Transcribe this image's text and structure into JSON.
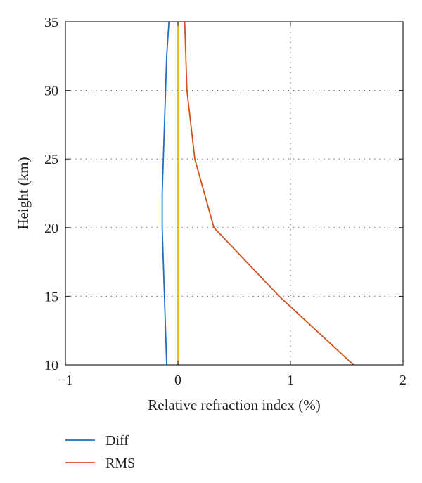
{
  "chart_data": {
    "type": "line",
    "title": "",
    "xlabel": "Relative refraction index (%)",
    "ylabel": "Height (km)",
    "xlim": [
      -1,
      2
    ],
    "ylim": [
      10,
      35
    ],
    "xticks": [
      -1,
      0,
      1,
      2
    ],
    "yticks": [
      10,
      15,
      20,
      25,
      30,
      35
    ],
    "xtick_labels": [
      "−1",
      "0",
      "1",
      "2"
    ],
    "ytick_labels": [
      "10",
      "15",
      "20",
      "25",
      "30",
      "35"
    ],
    "grid": "dotted, major ticks",
    "legend_position": "below plot",
    "zero_line": {
      "x": 0,
      "color": "#E8A400"
    },
    "series": [
      {
        "name": "Diff",
        "color": "#1F6FBF",
        "x": [
          -0.1,
          -0.11,
          -0.12,
          -0.13,
          -0.14,
          -0.14,
          -0.13,
          -0.12,
          -0.11,
          -0.1,
          -0.08
        ],
        "y": [
          10,
          12.5,
          15,
          17.5,
          20,
          22.5,
          25,
          27.5,
          30,
          32.5,
          35
        ]
      },
      {
        "name": "RMS",
        "color": "#D2511B",
        "x": [
          1.56,
          0.9,
          0.32,
          0.15,
          0.08,
          0.06
        ],
        "y": [
          10,
          15,
          20,
          25,
          30,
          35
        ]
      }
    ]
  }
}
